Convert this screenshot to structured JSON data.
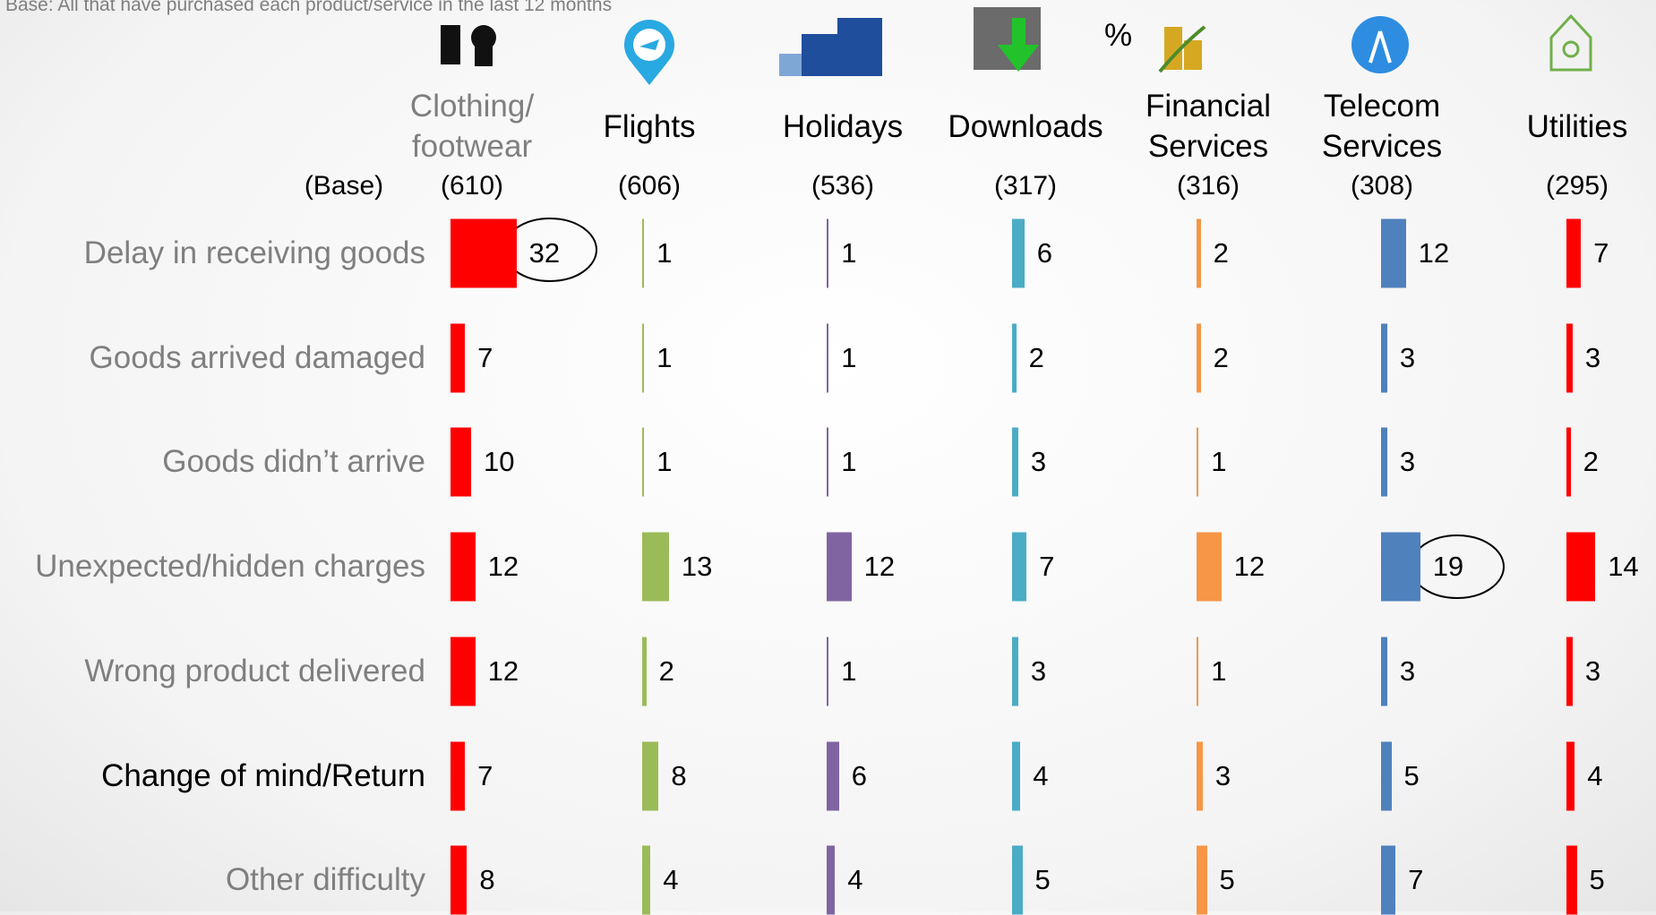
{
  "chart_data": {
    "type": "bar",
    "subtitle": "Base: All that have purchased each product/service in the last 12 months",
    "unit": "%",
    "base_label": "(Base)",
    "categories": [
      "Delay in receiving goods",
      "Goods arrived damaged",
      "Goods didn’t arrive",
      "Unexpected/hidden charges",
      "Wrong product delivered",
      "Change of mind/Return",
      "Other difficulty"
    ],
    "series": [
      {
        "name": "Clothing/ footwear",
        "base": "(610)",
        "color": "#ff0000",
        "values": [
          32,
          7,
          10,
          12,
          12,
          7,
          8
        ]
      },
      {
        "name": "Flights",
        "base": "(606)",
        "color": "#9bbb59",
        "values": [
          1,
          1,
          1,
          13,
          2,
          8,
          4
        ]
      },
      {
        "name": "Holidays",
        "base": "(536)",
        "color": "#8064a2",
        "values": [
          1,
          1,
          1,
          12,
          1,
          6,
          4
        ]
      },
      {
        "name": "Downloads",
        "base": "(317)",
        "color": "#4bacc6",
        "values": [
          6,
          2,
          3,
          7,
          3,
          4,
          5
        ]
      },
      {
        "name": "Financial Services",
        "base": "(316)",
        "color": "#f79646",
        "values": [
          2,
          2,
          1,
          12,
          1,
          3,
          5
        ]
      },
      {
        "name": "Telecom Services",
        "base": "(308)",
        "color": "#4f81bd",
        "values": [
          12,
          3,
          3,
          19,
          3,
          5,
          7
        ]
      },
      {
        "name": "Utilities",
        "base": "(295)",
        "color": "#ff0000",
        "values": [
          7,
          3,
          2,
          14,
          3,
          4,
          5
        ]
      }
    ]
  }
}
